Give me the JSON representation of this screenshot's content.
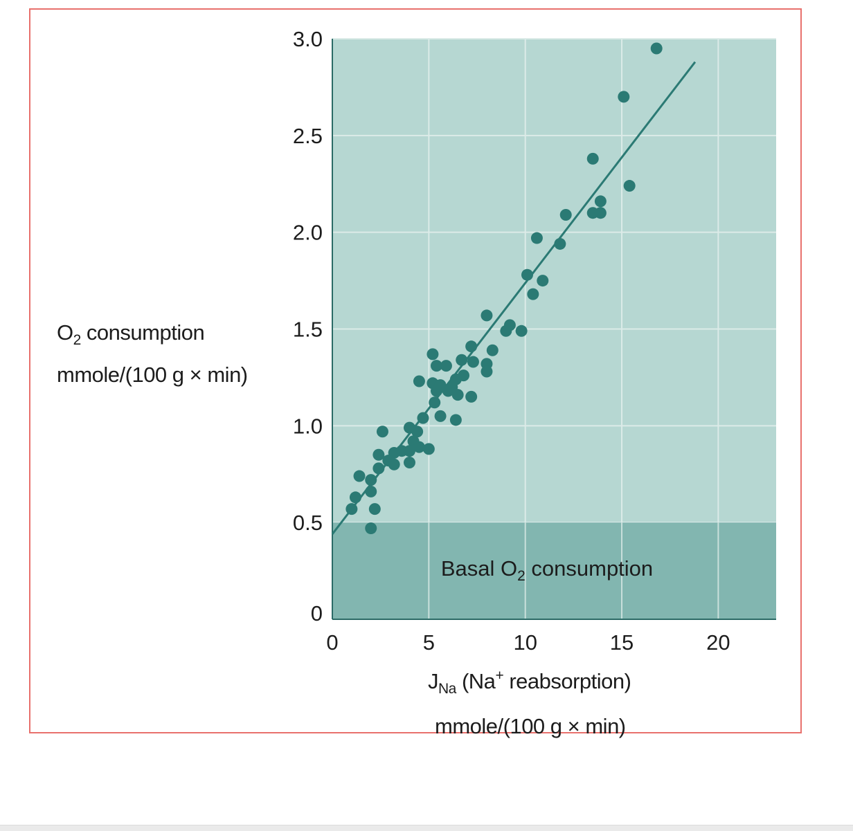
{
  "chart_data": {
    "type": "scatter",
    "ylabel": {
      "line1_main": "O",
      "line1_sub": "2",
      "line1_rest": " consumption",
      "line2": "mmole/(100 g × min)"
    },
    "xlabel": {
      "line1_main": "J",
      "line1_sub": "Na",
      "line1_mid": " (Na",
      "line1_sup": "+",
      "line1_rest": " reabsorption)",
      "line2": "mmole/(100 g × min)"
    },
    "xlim": [
      0,
      23
    ],
    "ylim": [
      0,
      3.0
    ],
    "xticks": [
      0,
      5,
      10,
      15,
      20
    ],
    "xtick_labels": [
      "0",
      "5",
      "10",
      "15",
      "20"
    ],
    "yticks": [
      0,
      0.5,
      1.0,
      1.5,
      2.0,
      2.5,
      3.0
    ],
    "ytick_labels": [
      "0",
      "0.5",
      "1.0",
      "1.5",
      "2.0",
      "2.5",
      "3.0"
    ],
    "grid": true,
    "basal_region": {
      "y_max": 0.5,
      "label_main": "Basal O",
      "label_sub": "2",
      "label_rest": " consumption"
    },
    "fit_line": {
      "x": [
        0,
        18.8
      ],
      "y": [
        0.44,
        2.88
      ]
    },
    "points": [
      [
        16.8,
        2.95
      ],
      [
        15.1,
        2.7
      ],
      [
        13.5,
        2.38
      ],
      [
        15.4,
        2.24
      ],
      [
        13.9,
        2.16
      ],
      [
        13.5,
        2.1
      ],
      [
        13.9,
        2.1
      ],
      [
        12.1,
        2.09
      ],
      [
        10.6,
        1.97
      ],
      [
        11.8,
        1.94
      ],
      [
        10.1,
        1.78
      ],
      [
        10.9,
        1.75
      ],
      [
        10.4,
        1.68
      ],
      [
        8.0,
        1.57
      ],
      [
        9.2,
        1.52
      ],
      [
        9.0,
        1.49
      ],
      [
        9.8,
        1.49
      ],
      [
        8.3,
        1.39
      ],
      [
        7.2,
        1.41
      ],
      [
        5.2,
        1.37
      ],
      [
        6.7,
        1.34
      ],
      [
        7.3,
        1.33
      ],
      [
        8.0,
        1.32
      ],
      [
        5.4,
        1.31
      ],
      [
        5.9,
        1.31
      ],
      [
        8.0,
        1.28
      ],
      [
        6.8,
        1.26
      ],
      [
        4.5,
        1.23
      ],
      [
        5.2,
        1.22
      ],
      [
        6.4,
        1.24
      ],
      [
        5.6,
        1.21
      ],
      [
        6.2,
        1.2
      ],
      [
        5.4,
        1.18
      ],
      [
        6.0,
        1.18
      ],
      [
        6.5,
        1.16
      ],
      [
        7.2,
        1.15
      ],
      [
        5.3,
        1.12
      ],
      [
        4.7,
        1.04
      ],
      [
        5.6,
        1.05
      ],
      [
        6.4,
        1.03
      ],
      [
        4.0,
        0.99
      ],
      [
        4.4,
        0.97
      ],
      [
        2.6,
        0.97
      ],
      [
        4.2,
        0.92
      ],
      [
        4.5,
        0.89
      ],
      [
        3.6,
        0.87
      ],
      [
        4.0,
        0.87
      ],
      [
        3.2,
        0.86
      ],
      [
        2.4,
        0.85
      ],
      [
        5.0,
        0.88
      ],
      [
        2.9,
        0.82
      ],
      [
        3.2,
        0.8
      ],
      [
        4.0,
        0.81
      ],
      [
        2.4,
        0.78
      ],
      [
        1.4,
        0.74
      ],
      [
        2.0,
        0.72
      ],
      [
        1.2,
        0.63
      ],
      [
        2.0,
        0.66
      ],
      [
        1.0,
        0.57
      ],
      [
        2.2,
        0.57
      ],
      [
        2.0,
        0.47
      ]
    ],
    "colors": {
      "plot_bg": "#b6d7d2",
      "basal_bg": "#82b6b0",
      "grid": "#dcebe8",
      "points": "#2b7a74",
      "line": "#2b7a74",
      "frame": "#e8706c"
    }
  }
}
